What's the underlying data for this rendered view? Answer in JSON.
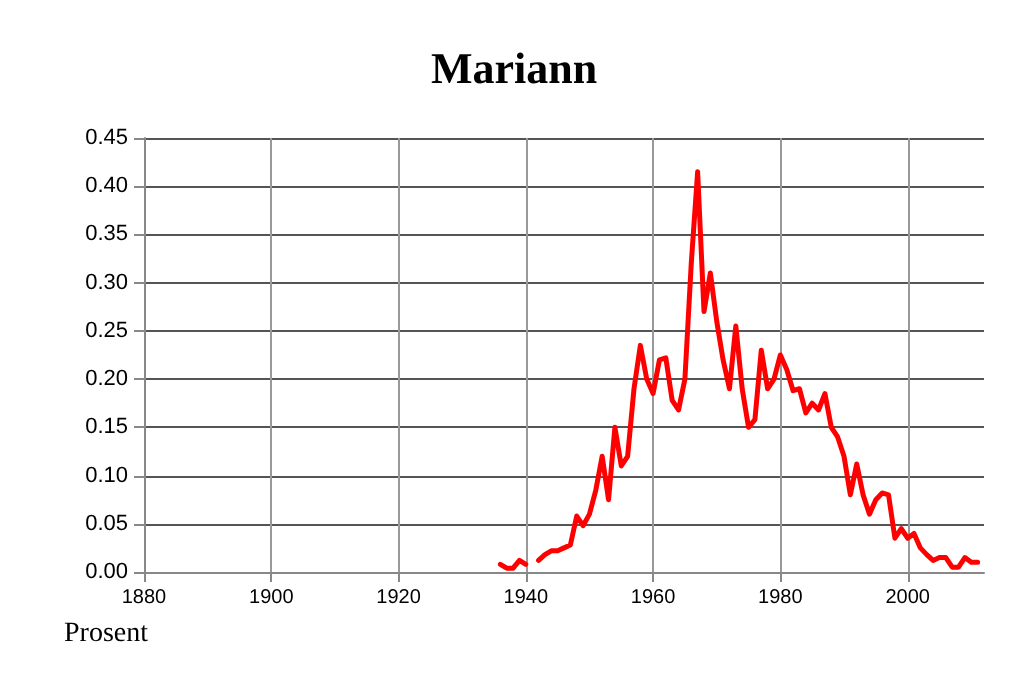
{
  "chart_data": {
    "type": "line",
    "title": "Mariann",
    "ylabel": "Prosent",
    "x": [
      1936,
      1937,
      1938,
      1939,
      1940,
      1941,
      1942,
      1943,
      1944,
      1945,
      1946,
      1947,
      1948,
      1949,
      1950,
      1951,
      1952,
      1953,
      1954,
      1955,
      1956,
      1957,
      1958,
      1959,
      1960,
      1961,
      1962,
      1963,
      1964,
      1965,
      1966,
      1967,
      1968,
      1969,
      1970,
      1971,
      1972,
      1973,
      1974,
      1975,
      1976,
      1977,
      1978,
      1979,
      1980,
      1981,
      1982,
      1983,
      1984,
      1985,
      1986,
      1987,
      1988,
      1989,
      1990,
      1991,
      1992,
      1993,
      1994,
      1995,
      1996,
      1997,
      1998,
      1999,
      2000,
      2001,
      2002,
      2003,
      2004,
      2005,
      2006,
      2007,
      2008,
      2009,
      2010,
      2011
    ],
    "series": [
      {
        "color": "#ff0000",
        "values": [
          0.008,
          0.004,
          0.004,
          0.012,
          0.008,
          null,
          0.012,
          0.018,
          0.022,
          0.022,
          0.025,
          0.028,
          0.058,
          0.048,
          0.06,
          0.085,
          0.12,
          0.075,
          0.15,
          0.11,
          0.12,
          0.19,
          0.235,
          0.2,
          0.185,
          0.22,
          0.222,
          0.178,
          0.168,
          0.2,
          0.32,
          0.415,
          0.27,
          0.31,
          0.26,
          0.22,
          0.19,
          0.255,
          0.19,
          0.15,
          0.158,
          0.23,
          0.19,
          0.2,
          0.225,
          0.21,
          0.188,
          0.19,
          0.165,
          0.175,
          0.168,
          0.185,
          0.15,
          0.14,
          0.12,
          0.08,
          0.112,
          0.08,
          0.06,
          0.075,
          0.082,
          0.08,
          0.035,
          0.045,
          0.035,
          0.04,
          0.025,
          0.018,
          0.012,
          0.015,
          0.015,
          0.005,
          0.005,
          0.015,
          0.01,
          0.01
        ]
      }
    ],
    "xlim": [
      1880,
      2012
    ],
    "xticks": [
      1880,
      1900,
      1920,
      1940,
      1960,
      1980,
      2000
    ],
    "ylim": [
      0,
      0.45
    ],
    "yticks": [
      {
        "value": 0,
        "label": "0.00"
      },
      0.05,
      {
        "value": 0.1,
        "label": "0.10"
      },
      0.15,
      {
        "value": 0.2,
        "label": "0.20"
      },
      0.25,
      {
        "value": 0.3,
        "label": "0.30"
      },
      0.35,
      {
        "value": 0.4,
        "label": "0.40"
      },
      0.45
    ],
    "grid": true,
    "marker": "none",
    "line_style": "solid"
  }
}
